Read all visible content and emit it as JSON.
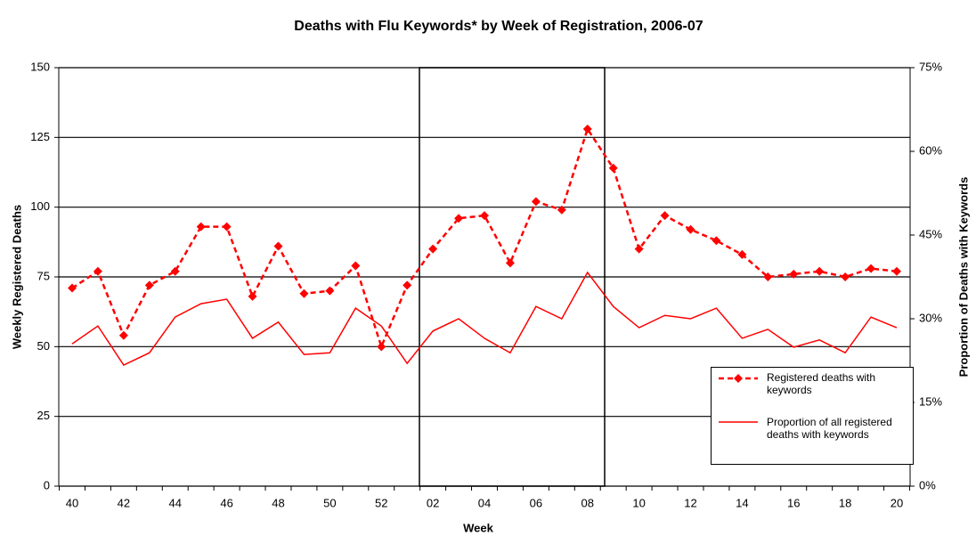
{
  "chart_data": {
    "type": "line",
    "title": "Deaths with Flu Keywords* by Week of Registration, 2006-07",
    "x_label": "Week",
    "y_label": "Weekly Registered Deaths",
    "y2_label": "Proportion of Deaths with Keywords",
    "categories": [
      "40",
      null,
      "42",
      null,
      "44",
      null,
      "46",
      null,
      "48",
      null,
      "50",
      null,
      "52",
      null,
      "02",
      null,
      "04",
      null,
      "06",
      null,
      "08",
      null,
      "10",
      null,
      "12",
      null,
      "14",
      null,
      "16",
      null,
      "18",
      null,
      "20"
    ],
    "series": [
      {
        "name": "Registered deaths with keywords",
        "color": "#ff0000",
        "style": "dashed",
        "marker": "diamond",
        "values": [
          71,
          77,
          54,
          72,
          77,
          93,
          93,
          68,
          86,
          69,
          70,
          79,
          50,
          72,
          85,
          96,
          97,
          80,
          102,
          99,
          128,
          114,
          85,
          97,
          92,
          88,
          83,
          75,
          76,
          77,
          75,
          78,
          77
        ]
      },
      {
        "name": "Proportion of all registered deaths with keywords",
        "color": "#ff0000",
        "style": "solid",
        "axis": "y2",
        "values": [
          25.5,
          28.7,
          21.7,
          23.9,
          30.3,
          32.7,
          33.5,
          26.5,
          29.4,
          23.6,
          23.9,
          31.9,
          28.7,
          22.0,
          27.8,
          30.0,
          26.5,
          23.9,
          32.2,
          30.0,
          38.3,
          32.2,
          28.4,
          30.6,
          30.0,
          31.9,
          26.5,
          28.1,
          24.9,
          26.2,
          23.9,
          30.3,
          28.4
        ]
      }
    ],
    "ylim": [
      0,
      150
    ],
    "yticks": [
      0,
      25,
      50,
      75,
      100,
      125,
      150
    ],
    "y2lim": [
      0,
      75
    ],
    "y2ticks": [
      {
        "value": 0,
        "label": "0%"
      },
      {
        "value": 15,
        "label": "15%"
      },
      {
        "value": 30,
        "label": "30%"
      },
      {
        "value": 45,
        "label": "45%"
      },
      {
        "value": 60,
        "label": "60%"
      },
      {
        "value": 75,
        "label": "75%"
      }
    ],
    "grid": true
  }
}
